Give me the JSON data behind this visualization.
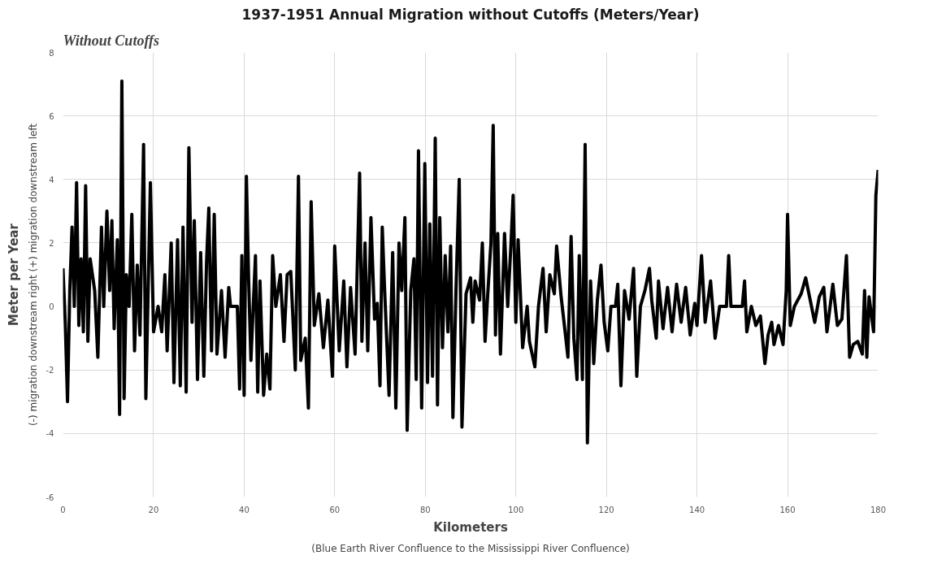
{
  "chart_data": {
    "type": "line",
    "title": "1937-1951 Annual Migration without Cutoffs (Meters/Year)",
    "xlabel": "Kilometers",
    "ylabel": "Meter per Year",
    "annotations": [
      "Without Cutoffs",
      "(-) migration downstream right (+) migration downstream left",
      "(Blue Earth River Confluence to the Mississippi River Confluence)"
    ],
    "xlim": [
      0,
      180
    ],
    "xticks": [
      0,
      20,
      40,
      60,
      80,
      100,
      120,
      140,
      160,
      180
    ],
    "ylim": [
      -6,
      8
    ],
    "yticks": [
      -6,
      -4,
      -2,
      0,
      2,
      4,
      6,
      8
    ],
    "grid": true,
    "marker": "none",
    "line_style": "solid",
    "series": [
      {
        "color": "#000000",
        "x": [
          0,
          0.5,
          1,
          1.5,
          2,
          2.5,
          3,
          3.5,
          4,
          4.5,
          5,
          5.5,
          6,
          7,
          7.7,
          8.5,
          9,
          9.7,
          10.3,
          10.8,
          11.3,
          12,
          12.5,
          13,
          13.5,
          14,
          14.6,
          15.2,
          15.8,
          16.4,
          17,
          17.8,
          18.3,
          19.3,
          20,
          21,
          21.8,
          22.5,
          23,
          23.9,
          24.5,
          25.3,
          25.9,
          26.5,
          27.2,
          27.8,
          28.5,
          29,
          29.7,
          30.4,
          31.1,
          31.7,
          32.2,
          32.8,
          33.4,
          34,
          35,
          35.8,
          36.6,
          37,
          38.5,
          39,
          39.5,
          40,
          40.5,
          41,
          41.5,
          42.5,
          43,
          43.5,
          44.3,
          45,
          45.7,
          46.3,
          47,
          48,
          48.8,
          49.5,
          50.3,
          51.3,
          52,
          52.5,
          53.5,
          54.2,
          54.8,
          55.5,
          56.5,
          57.5,
          58.5,
          59.5,
          60,
          61,
          62,
          62.7,
          63.5,
          64.5,
          65.5,
          66,
          66.7,
          67.3,
          68,
          68.8,
          69.4,
          70,
          70.5,
          71,
          72,
          72.8,
          73.5,
          74.2,
          74.8,
          75.5,
          76,
          76.8,
          77.5,
          78,
          78.5,
          79.2,
          79.9,
          80.5,
          81,
          81.6,
          82.2,
          82.7,
          83.2,
          83.8,
          84.4,
          85,
          85.6,
          86.1,
          86.8,
          87.5,
          88.1,
          89,
          90,
          90.5,
          91,
          92,
          92.6,
          93.2,
          93.8,
          94.5,
          95,
          95.5,
          96,
          96.6,
          97.5,
          98.2,
          98.9,
          99.4,
          100,
          100.5,
          101.5,
          102.5,
          103,
          104.2,
          105,
          106,
          106.7,
          107.5,
          108.5,
          109,
          110,
          110.8,
          111.5,
          112.2,
          112.8,
          113.5,
          114,
          114.7,
          115.3,
          115.8,
          116.5,
          117.2,
          118,
          118.8,
          119.5,
          120.3,
          121,
          122,
          122.5,
          123.2,
          124,
          125,
          126,
          126.7,
          127.5,
          128.5,
          129.5,
          130,
          131,
          131.5,
          132.5,
          133.5,
          134.5,
          135.5,
          136.5,
          137.5,
          138.5,
          139.5,
          140,
          141,
          141.8,
          143,
          144,
          145,
          146.5,
          147,
          147.5,
          150,
          150.5,
          151,
          152,
          153,
          154,
          155,
          155.7,
          156.5,
          157,
          158,
          159,
          159.7,
          160,
          160.6,
          161.5,
          163,
          164,
          165,
          166,
          167,
          168,
          168.7,
          170,
          171,
          172,
          173,
          173.7,
          174.5,
          175.5,
          176.5,
          177,
          177.5,
          178,
          179,
          179.5,
          180
        ],
        "values": [
          1.2,
          -0.5,
          -3.0,
          0.5,
          2.5,
          0,
          3.9,
          -0.6,
          1.5,
          -0.8,
          3.8,
          -1.1,
          1.5,
          0.5,
          -1.6,
          2.5,
          0,
          3.0,
          0.5,
          2.7,
          -0.7,
          2.1,
          -3.4,
          7.1,
          -2.9,
          1.0,
          0,
          2.9,
          -1.4,
          1.3,
          -0.9,
          5.1,
          -2.9,
          3.9,
          -0.8,
          0,
          -0.8,
          1.0,
          -1.4,
          2.0,
          -2.4,
          2.1,
          -2.5,
          2.5,
          -2.7,
          5.0,
          -0.5,
          2.7,
          -2.3,
          1.7,
          -2.2,
          1.4,
          3.1,
          -1.4,
          2.9,
          -1.5,
          0.5,
          -1.6,
          0.6,
          0,
          0,
          -2.6,
          1.6,
          -2.8,
          4.1,
          0.8,
          -1.7,
          1.6,
          -2.7,
          0.8,
          -2.8,
          -1.5,
          -2.6,
          1.6,
          0,
          1.0,
          -1.1,
          1.0,
          1.1,
          -2.0,
          4.1,
          -1.7,
          -1.0,
          -3.2,
          3.3,
          -0.6,
          0.4,
          -1.3,
          0.2,
          -2.2,
          1.9,
          -1.4,
          0.8,
          -1.9,
          0.6,
          -1.5,
          4.2,
          -1.1,
          2.0,
          -1.4,
          2.8,
          -0.4,
          0.1,
          -2.5,
          2.5,
          0.6,
          -2.8,
          1.7,
          -3.2,
          2.0,
          0.5,
          2.8,
          -3.9,
          0.5,
          1.5,
          -2.3,
          4.9,
          -3.2,
          4.5,
          -2.4,
          2.6,
          -2.2,
          5.3,
          -3.1,
          2.8,
          -1.3,
          1.6,
          -0.8,
          1.9,
          -3.5,
          0.6,
          4.0,
          -3.8,
          0.4,
          0.9,
          -0.5,
          0.8,
          0.2,
          2.0,
          -1.1,
          0.4,
          2.0,
          5.7,
          -0.9,
          2.3,
          -1.5,
          2.3,
          0.0,
          1.9,
          3.5,
          -0.5,
          2.1,
          -1.3,
          0,
          -1.1,
          -1.9,
          0,
          1.2,
          -0.8,
          1.0,
          0.4,
          1.9,
          0.3,
          -0.7,
          -1.6,
          2.2,
          -1.0,
          -2.3,
          1.6,
          -2.3,
          5.1,
          -4.3,
          0.8,
          -1.8,
          0.2,
          1.3,
          -0.5,
          -1.4,
          0,
          0,
          0.7,
          -2.5,
          0.5,
          -0.4,
          1.2,
          -2.2,
          0,
          0.5,
          1.2,
          0.2,
          -1.0,
          0.8,
          -0.7,
          0.6,
          -0.8,
          0.7,
          -0.5,
          0.6,
          -0.9,
          0.1,
          -0.6,
          1.6,
          -0.5,
          0.8,
          -1.0,
          0,
          0,
          1.6,
          0,
          0,
          0.8,
          -0.8,
          0,
          -0.6,
          -0.3,
          -1.8,
          -0.9,
          -0.5,
          -1.2,
          -0.6,
          -1.2,
          0.5,
          2.9,
          -0.6,
          0,
          0.4,
          0.9,
          0.2,
          -0.5,
          0.3,
          0.6,
          -0.8,
          0.7,
          -0.6,
          -0.4,
          1.6,
          -1.6,
          -1.2,
          -1.1,
          -1.5,
          0.5,
          -1.6,
          0.3,
          -0.8,
          3.5,
          4.3
        ]
      }
    ]
  }
}
